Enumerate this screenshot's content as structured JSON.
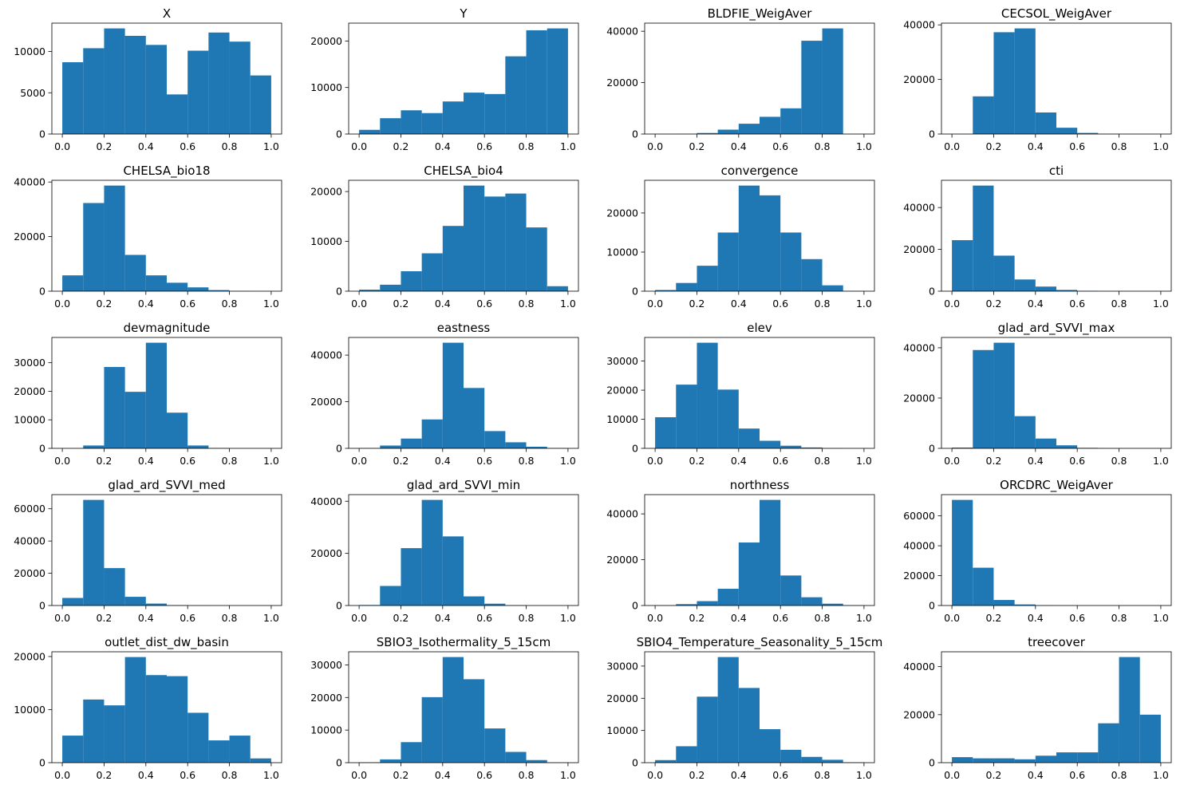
{
  "chart_data": [
    {
      "type": "bar",
      "title": "X",
      "categories": [
        "0.0-0.1",
        "0.1-0.2",
        "0.2-0.3",
        "0.3-0.4",
        "0.4-0.5",
        "0.5-0.6",
        "0.6-0.7",
        "0.7-0.8",
        "0.8-0.9",
        "0.9-1.0"
      ],
      "values": [
        8700,
        10400,
        12800,
        11900,
        10800,
        4800,
        10100,
        12300,
        11200,
        7100
      ],
      "xlim": [
        -0.05,
        1.05
      ],
      "ylim": [
        0,
        13440
      ],
      "xticks": [
        0.0,
        0.2,
        0.4,
        0.6,
        0.8,
        1.0
      ],
      "xtick_labels": [
        "0.0",
        "0.2",
        "0.4",
        "0.6",
        "0.8",
        "1.0"
      ],
      "yticks": [
        0,
        5000,
        10000
      ],
      "ytick_labels": [
        "0",
        "5000",
        "10000"
      ]
    },
    {
      "type": "bar",
      "title": "Y",
      "categories": [
        "0.0-0.1",
        "0.1-0.2",
        "0.2-0.3",
        "0.3-0.4",
        "0.4-0.5",
        "0.5-0.6",
        "0.6-0.7",
        "0.7-0.8",
        "0.8-0.9",
        "0.9-1.0"
      ],
      "values": [
        900,
        3400,
        5100,
        4500,
        7000,
        8900,
        8600,
        16700,
        22300,
        22700
      ],
      "xlim": [
        -0.05,
        1.05
      ],
      "ylim": [
        0,
        23835
      ],
      "xticks": [
        0.0,
        0.2,
        0.4,
        0.6,
        0.8,
        1.0
      ],
      "xtick_labels": [
        "0.0",
        "0.2",
        "0.4",
        "0.6",
        "0.8",
        "1.0"
      ],
      "yticks": [
        0,
        10000,
        20000
      ],
      "ytick_labels": [
        "0",
        "10000",
        "20000"
      ]
    },
    {
      "type": "bar",
      "title": "BLDFIE_WeigAver",
      "categories": [
        "0.0-0.1",
        "0.1-0.2",
        "0.2-0.3",
        "0.3-0.4",
        "0.4-0.5",
        "0.5-0.6",
        "0.6-0.7",
        "0.7-0.8",
        "0.8-0.9",
        "0.9-1.0"
      ],
      "values": [
        0,
        50,
        400,
        1700,
        4000,
        6700,
        10000,
        36300,
        41100,
        0
      ],
      "xlim": [
        -0.05,
        1.05
      ],
      "ylim": [
        0,
        43155
      ],
      "xticks": [
        0.0,
        0.2,
        0.4,
        0.6,
        0.8,
        1.0
      ],
      "xtick_labels": [
        "0.0",
        "0.2",
        "0.4",
        "0.6",
        "0.8",
        "1.0"
      ],
      "yticks": [
        0,
        20000,
        40000
      ],
      "ytick_labels": [
        "0",
        "20000",
        "40000"
      ]
    },
    {
      "type": "bar",
      "title": "CECSOL_WeigAver",
      "categories": [
        "0.0-0.1",
        "0.1-0.2",
        "0.2-0.3",
        "0.3-0.4",
        "0.4-0.5",
        "0.5-0.6",
        "0.6-0.7",
        "0.7-0.8",
        "0.8-0.9",
        "0.9-1.0"
      ],
      "values": [
        0,
        13800,
        37300,
        38700,
        7900,
        2300,
        400,
        50,
        0,
        0
      ],
      "xlim": [
        -0.05,
        1.05
      ],
      "ylim": [
        0,
        40635
      ],
      "xticks": [
        0.0,
        0.2,
        0.4,
        0.6,
        0.8,
        1.0
      ],
      "xtick_labels": [
        "0.0",
        "0.2",
        "0.4",
        "0.6",
        "0.8",
        "1.0"
      ],
      "yticks": [
        0,
        20000,
        40000
      ],
      "ytick_labels": [
        "0",
        "20000",
        "40000"
      ]
    },
    {
      "type": "bar",
      "title": "CHELSA_bio18",
      "categories": [
        "0.0-0.1",
        "0.1-0.2",
        "0.2-0.3",
        "0.3-0.4",
        "0.4-0.5",
        "0.5-0.6",
        "0.6-0.7",
        "0.7-0.8",
        "0.8-0.9",
        "0.9-1.0"
      ],
      "values": [
        5800,
        32300,
        38700,
        13300,
        5800,
        3100,
        1400,
        400,
        50,
        0
      ],
      "xlim": [
        -0.05,
        1.05
      ],
      "ylim": [
        0,
        40635
      ],
      "xticks": [
        0.0,
        0.2,
        0.4,
        0.6,
        0.8,
        1.0
      ],
      "xtick_labels": [
        "0.0",
        "0.2",
        "0.4",
        "0.6",
        "0.8",
        "1.0"
      ],
      "yticks": [
        0,
        20000,
        40000
      ],
      "ytick_labels": [
        "0",
        "20000",
        "40000"
      ]
    },
    {
      "type": "bar",
      "title": "CHELSA_bio4",
      "categories": [
        "0.0-0.1",
        "0.1-0.2",
        "0.2-0.3",
        "0.3-0.4",
        "0.4-0.5",
        "0.5-0.6",
        "0.6-0.7",
        "0.7-0.8",
        "0.8-0.9",
        "0.9-1.0"
      ],
      "values": [
        300,
        1300,
        4000,
        7600,
        13100,
        21200,
        19000,
        19600,
        12800,
        1000
      ],
      "xlim": [
        -0.05,
        1.05
      ],
      "ylim": [
        0,
        22260
      ],
      "xticks": [
        0.0,
        0.2,
        0.4,
        0.6,
        0.8,
        1.0
      ],
      "xtick_labels": [
        "0.0",
        "0.2",
        "0.4",
        "0.6",
        "0.8",
        "1.0"
      ],
      "yticks": [
        0,
        10000,
        20000
      ],
      "ytick_labels": [
        "0",
        "10000",
        "20000"
      ]
    },
    {
      "type": "bar",
      "title": "convergence",
      "categories": [
        "0.0-0.1",
        "0.1-0.2",
        "0.2-0.3",
        "0.3-0.4",
        "0.4-0.5",
        "0.5-0.6",
        "0.6-0.7",
        "0.7-0.8",
        "0.8-0.9",
        "0.9-1.0"
      ],
      "values": [
        300,
        2100,
        6500,
        15000,
        27000,
        24500,
        15000,
        8200,
        1500,
        50
      ],
      "xlim": [
        -0.05,
        1.05
      ],
      "ylim": [
        0,
        28350
      ],
      "xticks": [
        0.0,
        0.2,
        0.4,
        0.6,
        0.8,
        1.0
      ],
      "xtick_labels": [
        "0.0",
        "0.2",
        "0.4",
        "0.6",
        "0.8",
        "1.0"
      ],
      "yticks": [
        0,
        10000,
        20000
      ],
      "ytick_labels": [
        "0",
        "10000",
        "20000"
      ]
    },
    {
      "type": "bar",
      "title": "cti",
      "categories": [
        "0.0-0.1",
        "0.1-0.2",
        "0.2-0.3",
        "0.3-0.4",
        "0.4-0.5",
        "0.5-0.6",
        "0.6-0.7",
        "0.7-0.8",
        "0.8-0.9",
        "0.9-1.0"
      ],
      "values": [
        24400,
        50500,
        17000,
        5600,
        2200,
        600,
        150,
        50,
        0,
        0
      ],
      "xlim": [
        -0.05,
        1.05
      ],
      "ylim": [
        0,
        53025
      ],
      "xticks": [
        0.0,
        0.2,
        0.4,
        0.6,
        0.8,
        1.0
      ],
      "xtick_labels": [
        "0.0",
        "0.2",
        "0.4",
        "0.6",
        "0.8",
        "1.0"
      ],
      "yticks": [
        0,
        20000,
        40000
      ],
      "ytick_labels": [
        "0",
        "20000",
        "40000"
      ]
    },
    {
      "type": "bar",
      "title": "devmagnitude",
      "categories": [
        "0.0-0.1",
        "0.1-0.2",
        "0.2-0.3",
        "0.3-0.4",
        "0.4-0.5",
        "0.5-0.6",
        "0.6-0.7",
        "0.7-0.8",
        "0.8-0.9",
        "0.9-1.0"
      ],
      "values": [
        0,
        1000,
        28500,
        19800,
        37000,
        12500,
        1000,
        100,
        0,
        0
      ],
      "xlim": [
        -0.05,
        1.05
      ],
      "ylim": [
        0,
        38850
      ],
      "xticks": [
        0.0,
        0.2,
        0.4,
        0.6,
        0.8,
        1.0
      ],
      "xtick_labels": [
        "0.0",
        "0.2",
        "0.4",
        "0.6",
        "0.8",
        "1.0"
      ],
      "yticks": [
        0,
        10000,
        20000,
        30000
      ],
      "ytick_labels": [
        "0",
        "10000",
        "20000",
        "30000"
      ]
    },
    {
      "type": "bar",
      "title": "eastness",
      "categories": [
        "0.0-0.1",
        "0.1-0.2",
        "0.2-0.3",
        "0.3-0.4",
        "0.4-0.5",
        "0.5-0.6",
        "0.6-0.7",
        "0.7-0.8",
        "0.8-0.9",
        "0.9-1.0"
      ],
      "values": [
        100,
        1200,
        4200,
        12400,
        45300,
        25900,
        7400,
        2600,
        700,
        100
      ],
      "xlim": [
        -0.05,
        1.05
      ],
      "ylim": [
        0,
        47565
      ],
      "xticks": [
        0.0,
        0.2,
        0.4,
        0.6,
        0.8,
        1.0
      ],
      "xtick_labels": [
        "0.0",
        "0.2",
        "0.4",
        "0.6",
        "0.8",
        "1.0"
      ],
      "yticks": [
        0,
        20000,
        40000
      ],
      "ytick_labels": [
        "0",
        "20000",
        "40000"
      ]
    },
    {
      "type": "bar",
      "title": "elev",
      "categories": [
        "0.0-0.1",
        "0.1-0.2",
        "0.2-0.3",
        "0.3-0.4",
        "0.4-0.5",
        "0.5-0.6",
        "0.6-0.7",
        "0.7-0.8",
        "0.8-0.9",
        "0.9-1.0"
      ],
      "values": [
        10700,
        21900,
        36300,
        20200,
        6800,
        2600,
        900,
        300,
        50,
        0
      ],
      "xlim": [
        -0.05,
        1.05
      ],
      "ylim": [
        0,
        38115
      ],
      "xticks": [
        0.0,
        0.2,
        0.4,
        0.6,
        0.8,
        1.0
      ],
      "xtick_labels": [
        "0.0",
        "0.2",
        "0.4",
        "0.6",
        "0.8",
        "1.0"
      ],
      "yticks": [
        0,
        10000,
        20000,
        30000
      ],
      "ytick_labels": [
        "0",
        "10000",
        "20000",
        "30000"
      ]
    },
    {
      "type": "bar",
      "title": "glad_ard_SVVI_max",
      "categories": [
        "0.0-0.1",
        "0.1-0.2",
        "0.2-0.3",
        "0.3-0.4",
        "0.4-0.5",
        "0.5-0.6",
        "0.6-0.7",
        "0.7-0.8",
        "0.8-0.9",
        "0.9-1.0"
      ],
      "values": [
        300,
        39100,
        42000,
        12800,
        3900,
        1200,
        200,
        50,
        0,
        0
      ],
      "xlim": [
        -0.05,
        1.05
      ],
      "ylim": [
        0,
        44100
      ],
      "xticks": [
        0.0,
        0.2,
        0.4,
        0.6,
        0.8,
        1.0
      ],
      "xtick_labels": [
        "0.0",
        "0.2",
        "0.4",
        "0.6",
        "0.8",
        "1.0"
      ],
      "yticks": [
        0,
        20000,
        40000
      ],
      "ytick_labels": [
        "0",
        "20000",
        "40000"
      ]
    },
    {
      "type": "bar",
      "title": "glad_ard_SVVI_med",
      "categories": [
        "0.0-0.1",
        "0.1-0.2",
        "0.2-0.3",
        "0.3-0.4",
        "0.4-0.5",
        "0.5-0.6",
        "0.6-0.7",
        "0.7-0.8",
        "0.8-0.9",
        "0.9-1.0"
      ],
      "values": [
        4700,
        65500,
        23200,
        5400,
        1200,
        200,
        50,
        0,
        0,
        0
      ],
      "xlim": [
        -0.05,
        1.05
      ],
      "ylim": [
        0,
        68775
      ],
      "xticks": [
        0.0,
        0.2,
        0.4,
        0.6,
        0.8,
        1.0
      ],
      "xtick_labels": [
        "0.0",
        "0.2",
        "0.4",
        "0.6",
        "0.8",
        "1.0"
      ],
      "yticks": [
        0,
        20000,
        40000,
        60000
      ],
      "ytick_labels": [
        "0",
        "20000",
        "40000",
        "60000"
      ]
    },
    {
      "type": "bar",
      "title": "glad_ard_SVVI_min",
      "categories": [
        "0.0-0.1",
        "0.1-0.2",
        "0.2-0.3",
        "0.3-0.4",
        "0.4-0.5",
        "0.5-0.6",
        "0.6-0.7",
        "0.7-0.8",
        "0.8-0.9",
        "0.9-1.0"
      ],
      "values": [
        200,
        7500,
        22000,
        40500,
        26500,
        3500,
        700,
        100,
        0,
        0
      ],
      "xlim": [
        -0.05,
        1.05
      ],
      "ylim": [
        0,
        42525
      ],
      "xticks": [
        0.0,
        0.2,
        0.4,
        0.6,
        0.8,
        1.0
      ],
      "xtick_labels": [
        "0.0",
        "0.2",
        "0.4",
        "0.6",
        "0.8",
        "1.0"
      ],
      "yticks": [
        0,
        20000,
        40000
      ],
      "ytick_labels": [
        "0",
        "20000",
        "40000"
      ]
    },
    {
      "type": "bar",
      "title": "northness",
      "categories": [
        "0.0-0.1",
        "0.1-0.2",
        "0.2-0.3",
        "0.3-0.4",
        "0.4-0.5",
        "0.5-0.6",
        "0.6-0.7",
        "0.7-0.8",
        "0.8-0.9",
        "0.9-1.0"
      ],
      "values": [
        100,
        600,
        1900,
        7300,
        27500,
        46100,
        13100,
        3600,
        800,
        100
      ],
      "xlim": [
        -0.05,
        1.05
      ],
      "ylim": [
        0,
        48405
      ],
      "xticks": [
        0.0,
        0.2,
        0.4,
        0.6,
        0.8,
        1.0
      ],
      "xtick_labels": [
        "0.0",
        "0.2",
        "0.4",
        "0.6",
        "0.8",
        "1.0"
      ],
      "yticks": [
        0,
        20000,
        40000
      ],
      "ytick_labels": [
        "0",
        "20000",
        "40000"
      ]
    },
    {
      "type": "bar",
      "title": "ORCDRC_WeigAver",
      "categories": [
        "0.0-0.1",
        "0.1-0.2",
        "0.2-0.3",
        "0.3-0.4",
        "0.4-0.5",
        "0.5-0.6",
        "0.6-0.7",
        "0.7-0.8",
        "0.8-0.9",
        "0.9-1.0"
      ],
      "values": [
        70700,
        25300,
        3700,
        700,
        100,
        50,
        0,
        0,
        0,
        0
      ],
      "xlim": [
        -0.05,
        1.05
      ],
      "ylim": [
        0,
        74235
      ],
      "xticks": [
        0.0,
        0.2,
        0.4,
        0.6,
        0.8,
        1.0
      ],
      "xtick_labels": [
        "0.0",
        "0.2",
        "0.4",
        "0.6",
        "0.8",
        "1.0"
      ],
      "yticks": [
        0,
        20000,
        40000,
        60000
      ],
      "ytick_labels": [
        "0",
        "20000",
        "40000",
        "60000"
      ]
    },
    {
      "type": "bar",
      "title": "outlet_dist_dw_basin",
      "categories": [
        "0.0-0.1",
        "0.1-0.2",
        "0.2-0.3",
        "0.3-0.4",
        "0.4-0.5",
        "0.5-0.6",
        "0.6-0.7",
        "0.7-0.8",
        "0.8-0.9",
        "0.9-1.0"
      ],
      "values": [
        5100,
        11900,
        10800,
        19900,
        16500,
        16300,
        9400,
        4200,
        5100,
        800
      ],
      "xlim": [
        -0.05,
        1.05
      ],
      "ylim": [
        0,
        20895
      ],
      "xticks": [
        0.0,
        0.2,
        0.4,
        0.6,
        0.8,
        1.0
      ],
      "xtick_labels": [
        "0.0",
        "0.2",
        "0.4",
        "0.6",
        "0.8",
        "1.0"
      ],
      "yticks": [
        0,
        10000,
        20000
      ],
      "ytick_labels": [
        "0",
        "10000",
        "20000"
      ]
    },
    {
      "type": "bar",
      "title": "SBIO3_Isothermality_5_15cm",
      "categories": [
        "0.0-0.1",
        "0.1-0.2",
        "0.2-0.3",
        "0.3-0.4",
        "0.4-0.5",
        "0.5-0.6",
        "0.6-0.7",
        "0.7-0.8",
        "0.8-0.9",
        "0.9-1.0"
      ],
      "values": [
        100,
        1000,
        6300,
        20100,
        32400,
        25600,
        10500,
        3300,
        800,
        50
      ],
      "xlim": [
        -0.05,
        1.05
      ],
      "ylim": [
        0,
        34020
      ],
      "xticks": [
        0.0,
        0.2,
        0.4,
        0.6,
        0.8,
        1.0
      ],
      "xtick_labels": [
        "0.0",
        "0.2",
        "0.4",
        "0.6",
        "0.8",
        "1.0"
      ],
      "yticks": [
        0,
        10000,
        20000,
        30000
      ],
      "ytick_labels": [
        "0",
        "10000",
        "20000",
        "30000"
      ]
    },
    {
      "type": "bar",
      "title": "SBIO4_Temperature_Seasonality_5_15cm",
      "categories": [
        "0.0-0.1",
        "0.1-0.2",
        "0.2-0.3",
        "0.3-0.4",
        "0.4-0.5",
        "0.5-0.6",
        "0.6-0.7",
        "0.7-0.8",
        "0.8-0.9",
        "0.9-1.0"
      ],
      "values": [
        800,
        5100,
        20500,
        32800,
        23200,
        10400,
        4000,
        1800,
        900,
        100
      ],
      "xlim": [
        -0.05,
        1.05
      ],
      "ylim": [
        0,
        34440
      ],
      "xticks": [
        0.0,
        0.2,
        0.4,
        0.6,
        0.8,
        1.0
      ],
      "xtick_labels": [
        "0.0",
        "0.2",
        "0.4",
        "0.6",
        "0.8",
        "1.0"
      ],
      "yticks": [
        0,
        10000,
        20000,
        30000
      ],
      "ytick_labels": [
        "0",
        "10000",
        "20000",
        "30000"
      ]
    },
    {
      "type": "bar",
      "title": "treecover",
      "categories": [
        "0.0-0.1",
        "0.1-0.2",
        "0.2-0.3",
        "0.3-0.4",
        "0.4-0.5",
        "0.5-0.6",
        "0.6-0.7",
        "0.7-0.8",
        "0.8-0.9",
        "0.9-1.0"
      ],
      "values": [
        2300,
        1800,
        1800,
        1400,
        2900,
        4300,
        4300,
        16400,
        44000,
        20000
      ],
      "xlim": [
        -0.05,
        1.05
      ],
      "ylim": [
        0,
        46200
      ],
      "xticks": [
        0.0,
        0.2,
        0.4,
        0.6,
        0.8,
        1.0
      ],
      "xtick_labels": [
        "0.0",
        "0.2",
        "0.4",
        "0.6",
        "0.8",
        "1.0"
      ],
      "yticks": [
        0,
        20000,
        40000
      ],
      "ytick_labels": [
        "0",
        "20000",
        "40000"
      ]
    }
  ],
  "colors": {
    "bar": "#1f77b4",
    "axis": "#000000",
    "background": "#ffffff"
  }
}
